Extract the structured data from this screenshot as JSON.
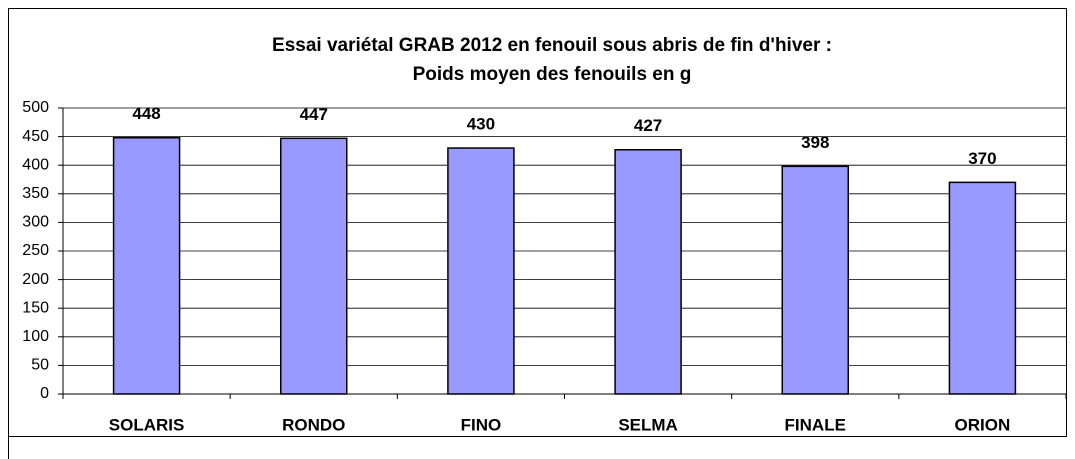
{
  "chart_data": {
    "type": "bar",
    "title": [
      "Essai variétal GRAB 2012  en fenouil sous abris de fin d'hiver :",
      "Poids moyen des fenouils en g"
    ],
    "categories": [
      "SOLARIS",
      "RONDO",
      "FINO",
      "SELMA",
      "FINALE",
      "ORION"
    ],
    "values": [
      448,
      447,
      430,
      427,
      398,
      370
    ],
    "color": "#9999ff",
    "ylim": [
      0,
      500
    ],
    "yticks": [
      0,
      50,
      100,
      150,
      200,
      250,
      300,
      350,
      400,
      450,
      500
    ],
    "grid": true
  }
}
